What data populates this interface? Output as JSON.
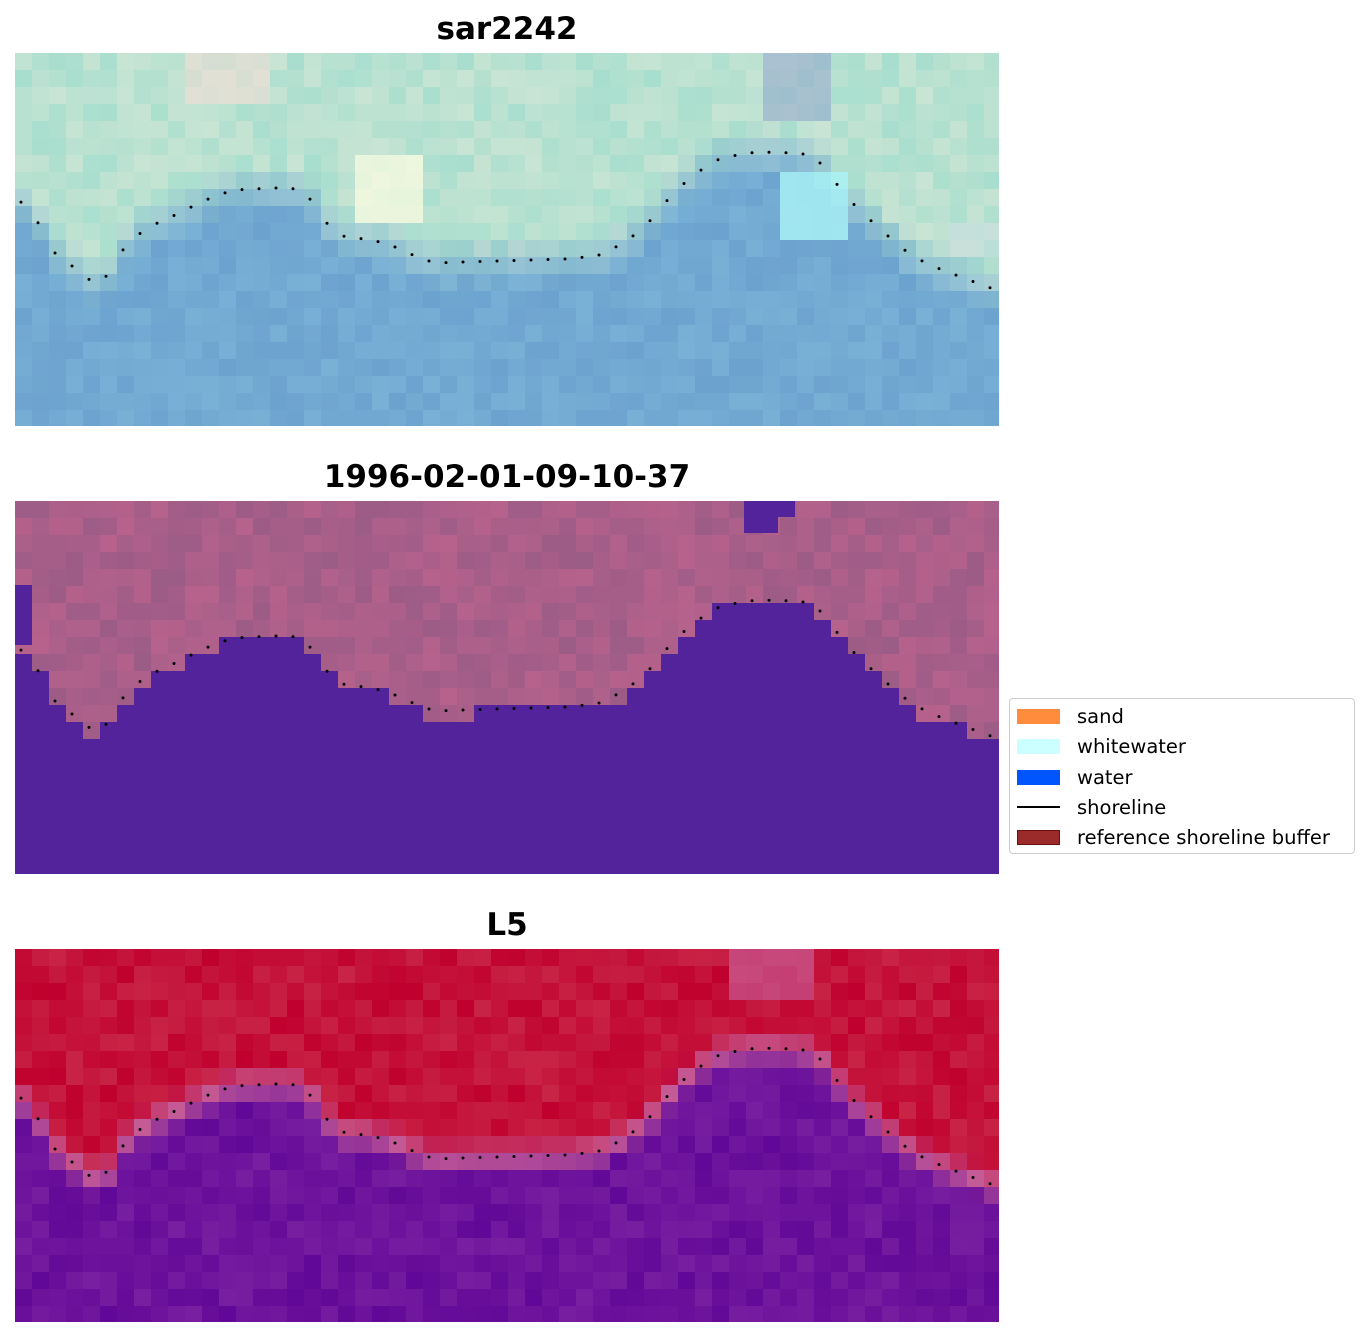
{
  "panels": [
    {
      "title": "sar2242",
      "kind": "rgb"
    },
    {
      "title": "1996-02-01-09-10-37",
      "kind": "classified"
    },
    {
      "title": "L5",
      "kind": "index"
    }
  ],
  "legend": {
    "items": [
      {
        "label": "sand",
        "type": "patch",
        "color": "#ff8c3c"
      },
      {
        "label": "whitewater",
        "type": "patch",
        "color": "#ccffff"
      },
      {
        "label": "water",
        "type": "patch",
        "color": "#0055ff"
      },
      {
        "label": "shoreline",
        "type": "line",
        "color": "#000000"
      },
      {
        "label": "reference shoreline buffer",
        "type": "patch",
        "color": "#9b2b2b",
        "edge": "#6b1010"
      }
    ]
  },
  "colors": {
    "shoreline_dots": "#000000",
    "classified_water": "#52239a",
    "classified_land": "#9a5c86",
    "index_high": "#c0002e",
    "index_low": "#6a0fa0"
  }
}
